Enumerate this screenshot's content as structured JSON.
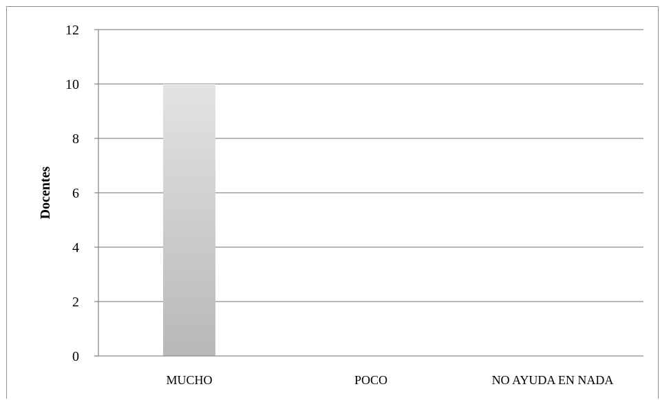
{
  "chart_data": {
    "type": "bar",
    "categories": [
      "MUCHO",
      "POCO",
      "NO AYUDA EN NADA"
    ],
    "series": [
      {
        "values": [
          10,
          0,
          0
        ]
      }
    ],
    "xlabel": "",
    "ylabel": "Docentes",
    "ylim": [
      0,
      12
    ],
    "yticks": [
      0,
      2,
      4,
      6,
      8,
      10,
      12
    ],
    "grid": true,
    "legend": "none",
    "bar_color_top": "#e3e3e3",
    "bar_color_bottom": "#b8b8b8"
  }
}
